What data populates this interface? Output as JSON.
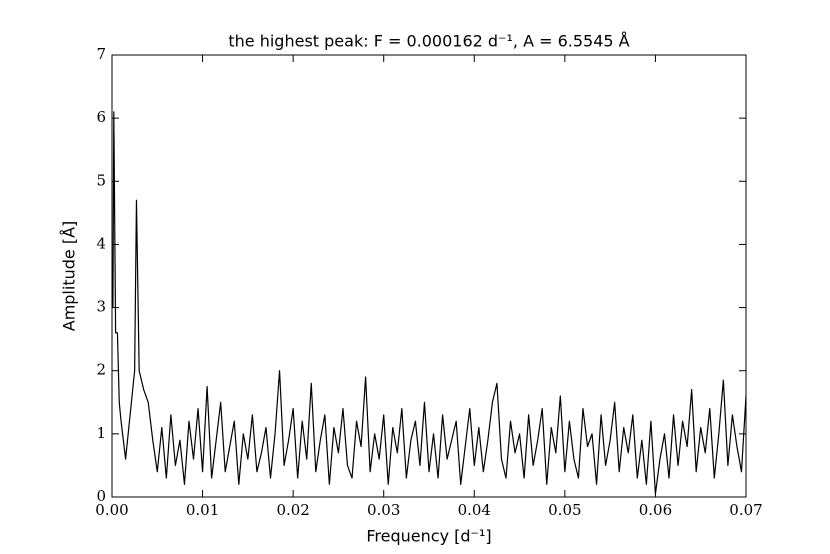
{
  "chart_data": {
    "type": "line",
    "title": "the highest peak: F = 0.000162 d⁻¹, A = 6.5545 Å",
    "xlabel": "Frequency [d⁻¹]",
    "ylabel": "Amplitude [Å]",
    "series": [
      {
        "color": "#000000",
        "x": [
          0.0001,
          0.0002,
          0.0004,
          0.0006,
          0.0008,
          0.001,
          0.0015,
          0.002,
          0.0025,
          0.0027,
          0.003,
          0.0035,
          0.004,
          0.0045,
          0.005,
          0.0055,
          0.006,
          0.0065,
          0.007,
          0.0075,
          0.008,
          0.0085,
          0.009,
          0.0095,
          0.01,
          0.0105,
          0.011,
          0.0115,
          0.012,
          0.0125,
          0.013,
          0.0135,
          0.014,
          0.0145,
          0.015,
          0.0155,
          0.016,
          0.0165,
          0.017,
          0.0175,
          0.018,
          0.0185,
          0.019,
          0.0195,
          0.02,
          0.0205,
          0.021,
          0.0215,
          0.022,
          0.0225,
          0.023,
          0.0235,
          0.024,
          0.0245,
          0.025,
          0.0255,
          0.026,
          0.0265,
          0.027,
          0.0275,
          0.028,
          0.0285,
          0.029,
          0.0295,
          0.03,
          0.0305,
          0.031,
          0.0315,
          0.032,
          0.0325,
          0.033,
          0.0335,
          0.034,
          0.0345,
          0.035,
          0.0355,
          0.036,
          0.0365,
          0.037,
          0.0375,
          0.038,
          0.0385,
          0.039,
          0.0395,
          0.04,
          0.0405,
          0.041,
          0.0415,
          0.042,
          0.0425,
          0.043,
          0.0435,
          0.044,
          0.0445,
          0.045,
          0.0455,
          0.046,
          0.0465,
          0.047,
          0.0475,
          0.048,
          0.0485,
          0.049,
          0.0495,
          0.05,
          0.0505,
          0.051,
          0.0515,
          0.052,
          0.0525,
          0.053,
          0.0535,
          0.054,
          0.0545,
          0.055,
          0.0555,
          0.056,
          0.0565,
          0.057,
          0.0575,
          0.058,
          0.0585,
          0.059,
          0.0595,
          0.06,
          0.0605,
          0.061,
          0.0615,
          0.062,
          0.0625,
          0.063,
          0.0635,
          0.064,
          0.0645,
          0.065,
          0.0655,
          0.066,
          0.0665,
          0.067,
          0.0675,
          0.068,
          0.0685,
          0.069,
          0.0695,
          0.07
        ],
        "values": [
          3.0,
          6.1,
          2.6,
          2.6,
          1.5,
          1.2,
          0.6,
          1.3,
          2.0,
          4.7,
          2.0,
          1.7,
          1.5,
          0.9,
          0.4,
          1.1,
          0.3,
          1.3,
          0.5,
          0.9,
          0.2,
          1.2,
          0.6,
          1.4,
          0.4,
          1.75,
          0.3,
          0.9,
          1.5,
          0.4,
          0.8,
          1.2,
          0.2,
          1.0,
          0.6,
          1.3,
          0.4,
          0.7,
          1.1,
          0.3,
          1.0,
          2.0,
          0.5,
          0.9,
          1.4,
          0.3,
          1.2,
          0.6,
          1.8,
          0.4,
          0.9,
          1.3,
          0.2,
          1.1,
          0.7,
          1.4,
          0.5,
          0.3,
          1.2,
          0.8,
          1.9,
          0.4,
          1.0,
          0.6,
          1.3,
          0.2,
          1.1,
          0.7,
          1.4,
          0.3,
          0.9,
          1.2,
          0.5,
          1.5,
          0.4,
          1.0,
          0.3,
          1.3,
          0.6,
          0.9,
          1.2,
          0.2,
          0.8,
          1.4,
          0.5,
          1.1,
          0.4,
          0.9,
          1.5,
          1.8,
          0.6,
          0.3,
          1.2,
          0.7,
          1.0,
          0.3,
          1.3,
          0.5,
          0.9,
          1.4,
          0.2,
          1.1,
          0.7,
          1.6,
          0.4,
          1.2,
          0.6,
          0.3,
          1.4,
          0.8,
          1.0,
          0.2,
          1.3,
          0.5,
          0.9,
          1.5,
          0.4,
          1.1,
          0.7,
          1.3,
          0.3,
          0.9,
          0.2,
          1.2,
          0.05,
          0.6,
          1.0,
          0.3,
          1.3,
          0.5,
          1.2,
          0.8,
          1.7,
          0.4,
          1.1,
          0.7,
          1.4,
          0.3,
          1.0,
          1.85,
          0.5,
          1.3,
          0.8,
          0.4,
          1.6
        ]
      }
    ],
    "xlim": [
      0,
      0.07
    ],
    "xticks": [
      {
        "value": 0,
        "label": "0.00"
      },
      {
        "value": 0.01,
        "label": "0.01"
      },
      {
        "value": 0.02,
        "label": "0.02"
      },
      {
        "value": 0.03,
        "label": "0.03"
      },
      {
        "value": 0.04,
        "label": "0.04"
      },
      {
        "value": 0.05,
        "label": "0.05"
      },
      {
        "value": 0.06,
        "label": "0.06"
      },
      {
        "value": 0.07,
        "label": "0.07"
      }
    ],
    "ylim": [
      0,
      7
    ],
    "yticks": [
      0,
      1,
      2,
      3,
      4,
      5,
      6,
      7
    ]
  }
}
